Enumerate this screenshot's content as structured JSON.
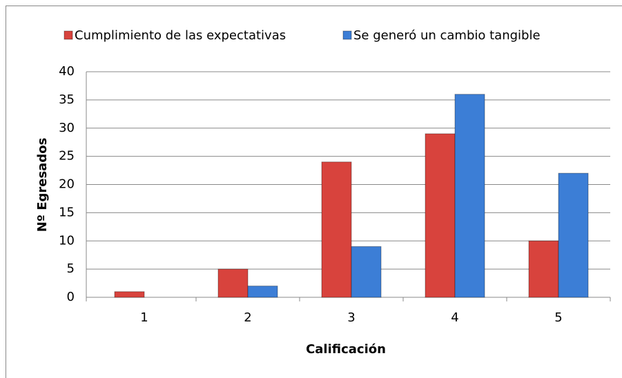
{
  "chart_data": {
    "type": "bar",
    "categories": [
      "1",
      "2",
      "3",
      "4",
      "5"
    ],
    "series": [
      {
        "name": "Cumplimiento de las expectativas",
        "color": "#d8433d",
        "values": [
          1,
          5,
          24,
          29,
          10
        ]
      },
      {
        "name": "Se generó un cambio tangible",
        "color": "#3c7ed6",
        "values": [
          0,
          2,
          9,
          36,
          22
        ]
      }
    ],
    "y_label": "Nº  Egresados",
    "x_label": "Calificación",
    "ylim": [
      0,
      40
    ],
    "yticks": [
      0,
      5,
      10,
      15,
      20,
      25,
      30,
      35,
      40
    ],
    "grid": true,
    "legend": "top"
  }
}
